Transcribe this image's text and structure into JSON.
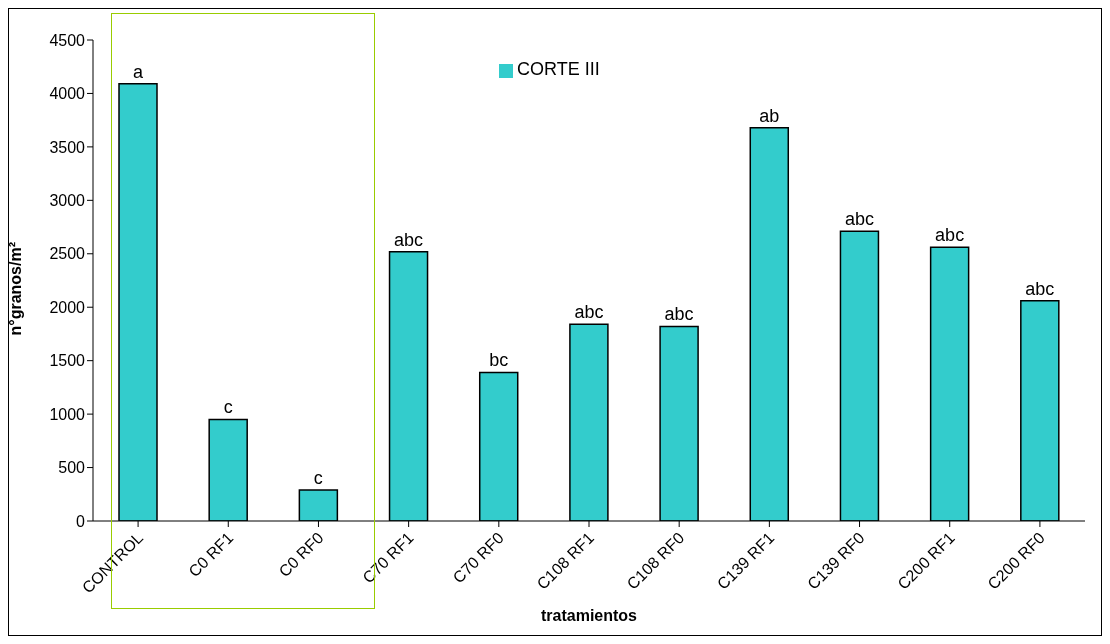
{
  "chart_data": {
    "type": "bar",
    "xlabel": "tratamientos",
    "ylabel": "n°granos/m²",
    "categories": [
      "CONTROL",
      "C0 RF1",
      "C0 RF0",
      "C70 RF1",
      "C70 RF0",
      "C108 RF1",
      "C108 RF0",
      "C139 RF1",
      "C139 RF0",
      "C200 RF1",
      "C200 RF0"
    ],
    "series": [
      {
        "name": "CORTE III",
        "color": "#33cccc",
        "values": [
          4090,
          950,
          290,
          2520,
          1390,
          1840,
          1820,
          3680,
          2710,
          2560,
          2060
        ],
        "value_labels": [
          "a",
          "c",
          "c",
          "abc",
          "bc",
          "abc",
          "abc",
          "ab",
          "abc",
          "abc",
          "abc"
        ]
      }
    ],
    "ylim": [
      0,
      4500
    ],
    "yticks": [
      0,
      500,
      1000,
      1500,
      2000,
      2500,
      3000,
      3500,
      4000,
      4500
    ],
    "grid": false,
    "legend": "top"
  }
}
